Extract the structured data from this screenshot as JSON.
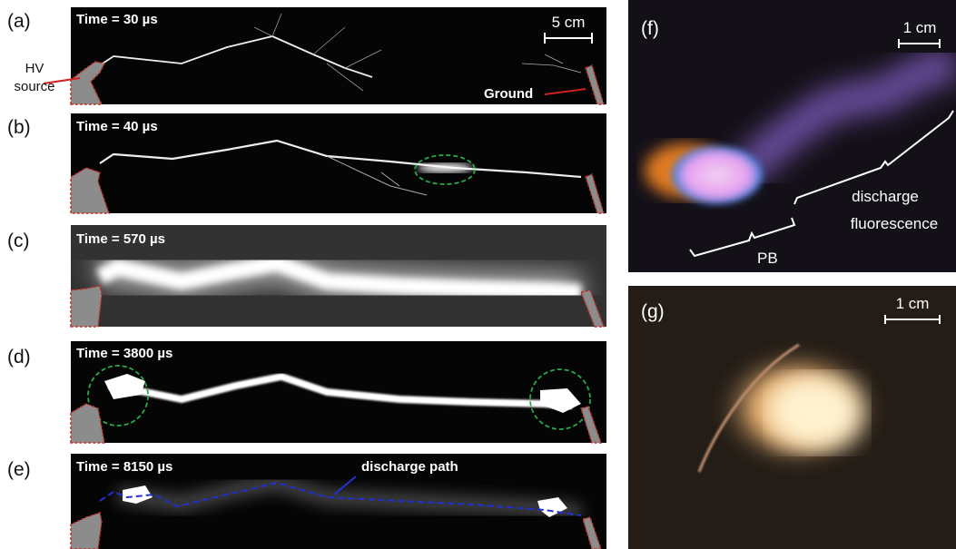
{
  "panels": [
    {
      "label": "(a)",
      "time": "Time = 30 µs",
      "scale": "5 cm",
      "source": [
        "HV",
        "source"
      ],
      "ground": "Ground"
    },
    {
      "label": "(b)",
      "time": "Time = 40 µs"
    },
    {
      "label": "(c)",
      "time": "Time = 570 µs"
    },
    {
      "label": "(d)",
      "time": "Time = 3800 µs"
    },
    {
      "label": "(e)",
      "time": "Time = 8150 µs",
      "note": "discharge path"
    },
    {
      "label": "(f)",
      "scale": "1 cm",
      "pb": "PB",
      "fluorescence": [
        "discharge",
        "fluorescence"
      ]
    },
    {
      "label": "(g)",
      "scale": "1 cm"
    }
  ]
}
